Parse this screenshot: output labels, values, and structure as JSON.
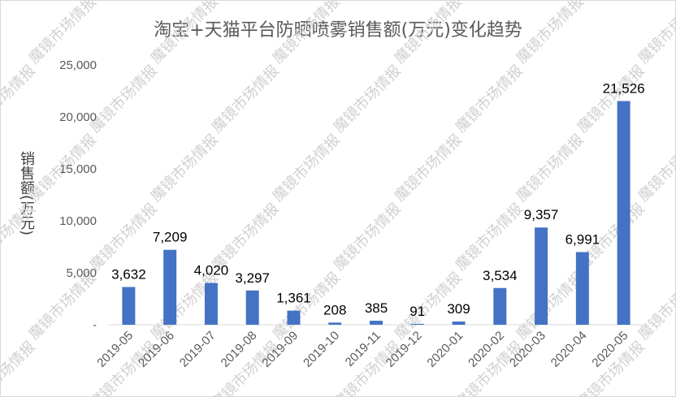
{
  "watermark": "魔镜市场情报",
  "chart_data": {
    "type": "bar",
    "title": "淘宝+天猫平台防晒喷雾销售额(万元)变化趋势",
    "xlabel": "",
    "ylabel": "销售额(万元)",
    "categories": [
      "2019-05",
      "2019-06",
      "2019-07",
      "2019-08",
      "2019-09",
      "2019-10",
      "2019-11",
      "2019-12",
      "2020-01",
      "2020-02",
      "2020-03",
      "2020-04",
      "2020-05"
    ],
    "values": [
      3632,
      7209,
      4020,
      3297,
      1361,
      208,
      385,
      91,
      309,
      3534,
      9357,
      6991,
      21526
    ],
    "data_labels": [
      "3,632",
      "7,209",
      "4,020",
      "3,297",
      "1,361",
      "208",
      "385",
      "91",
      "309",
      "3,534",
      "9,357",
      "6,991",
      "21,526"
    ],
    "yticks": [
      "-",
      "5,000",
      "10,000",
      "15,000",
      "20,000",
      "25,000"
    ],
    "ylim": [
      0,
      25000
    ],
    "grid": false,
    "bar_color": "#4472c4"
  }
}
